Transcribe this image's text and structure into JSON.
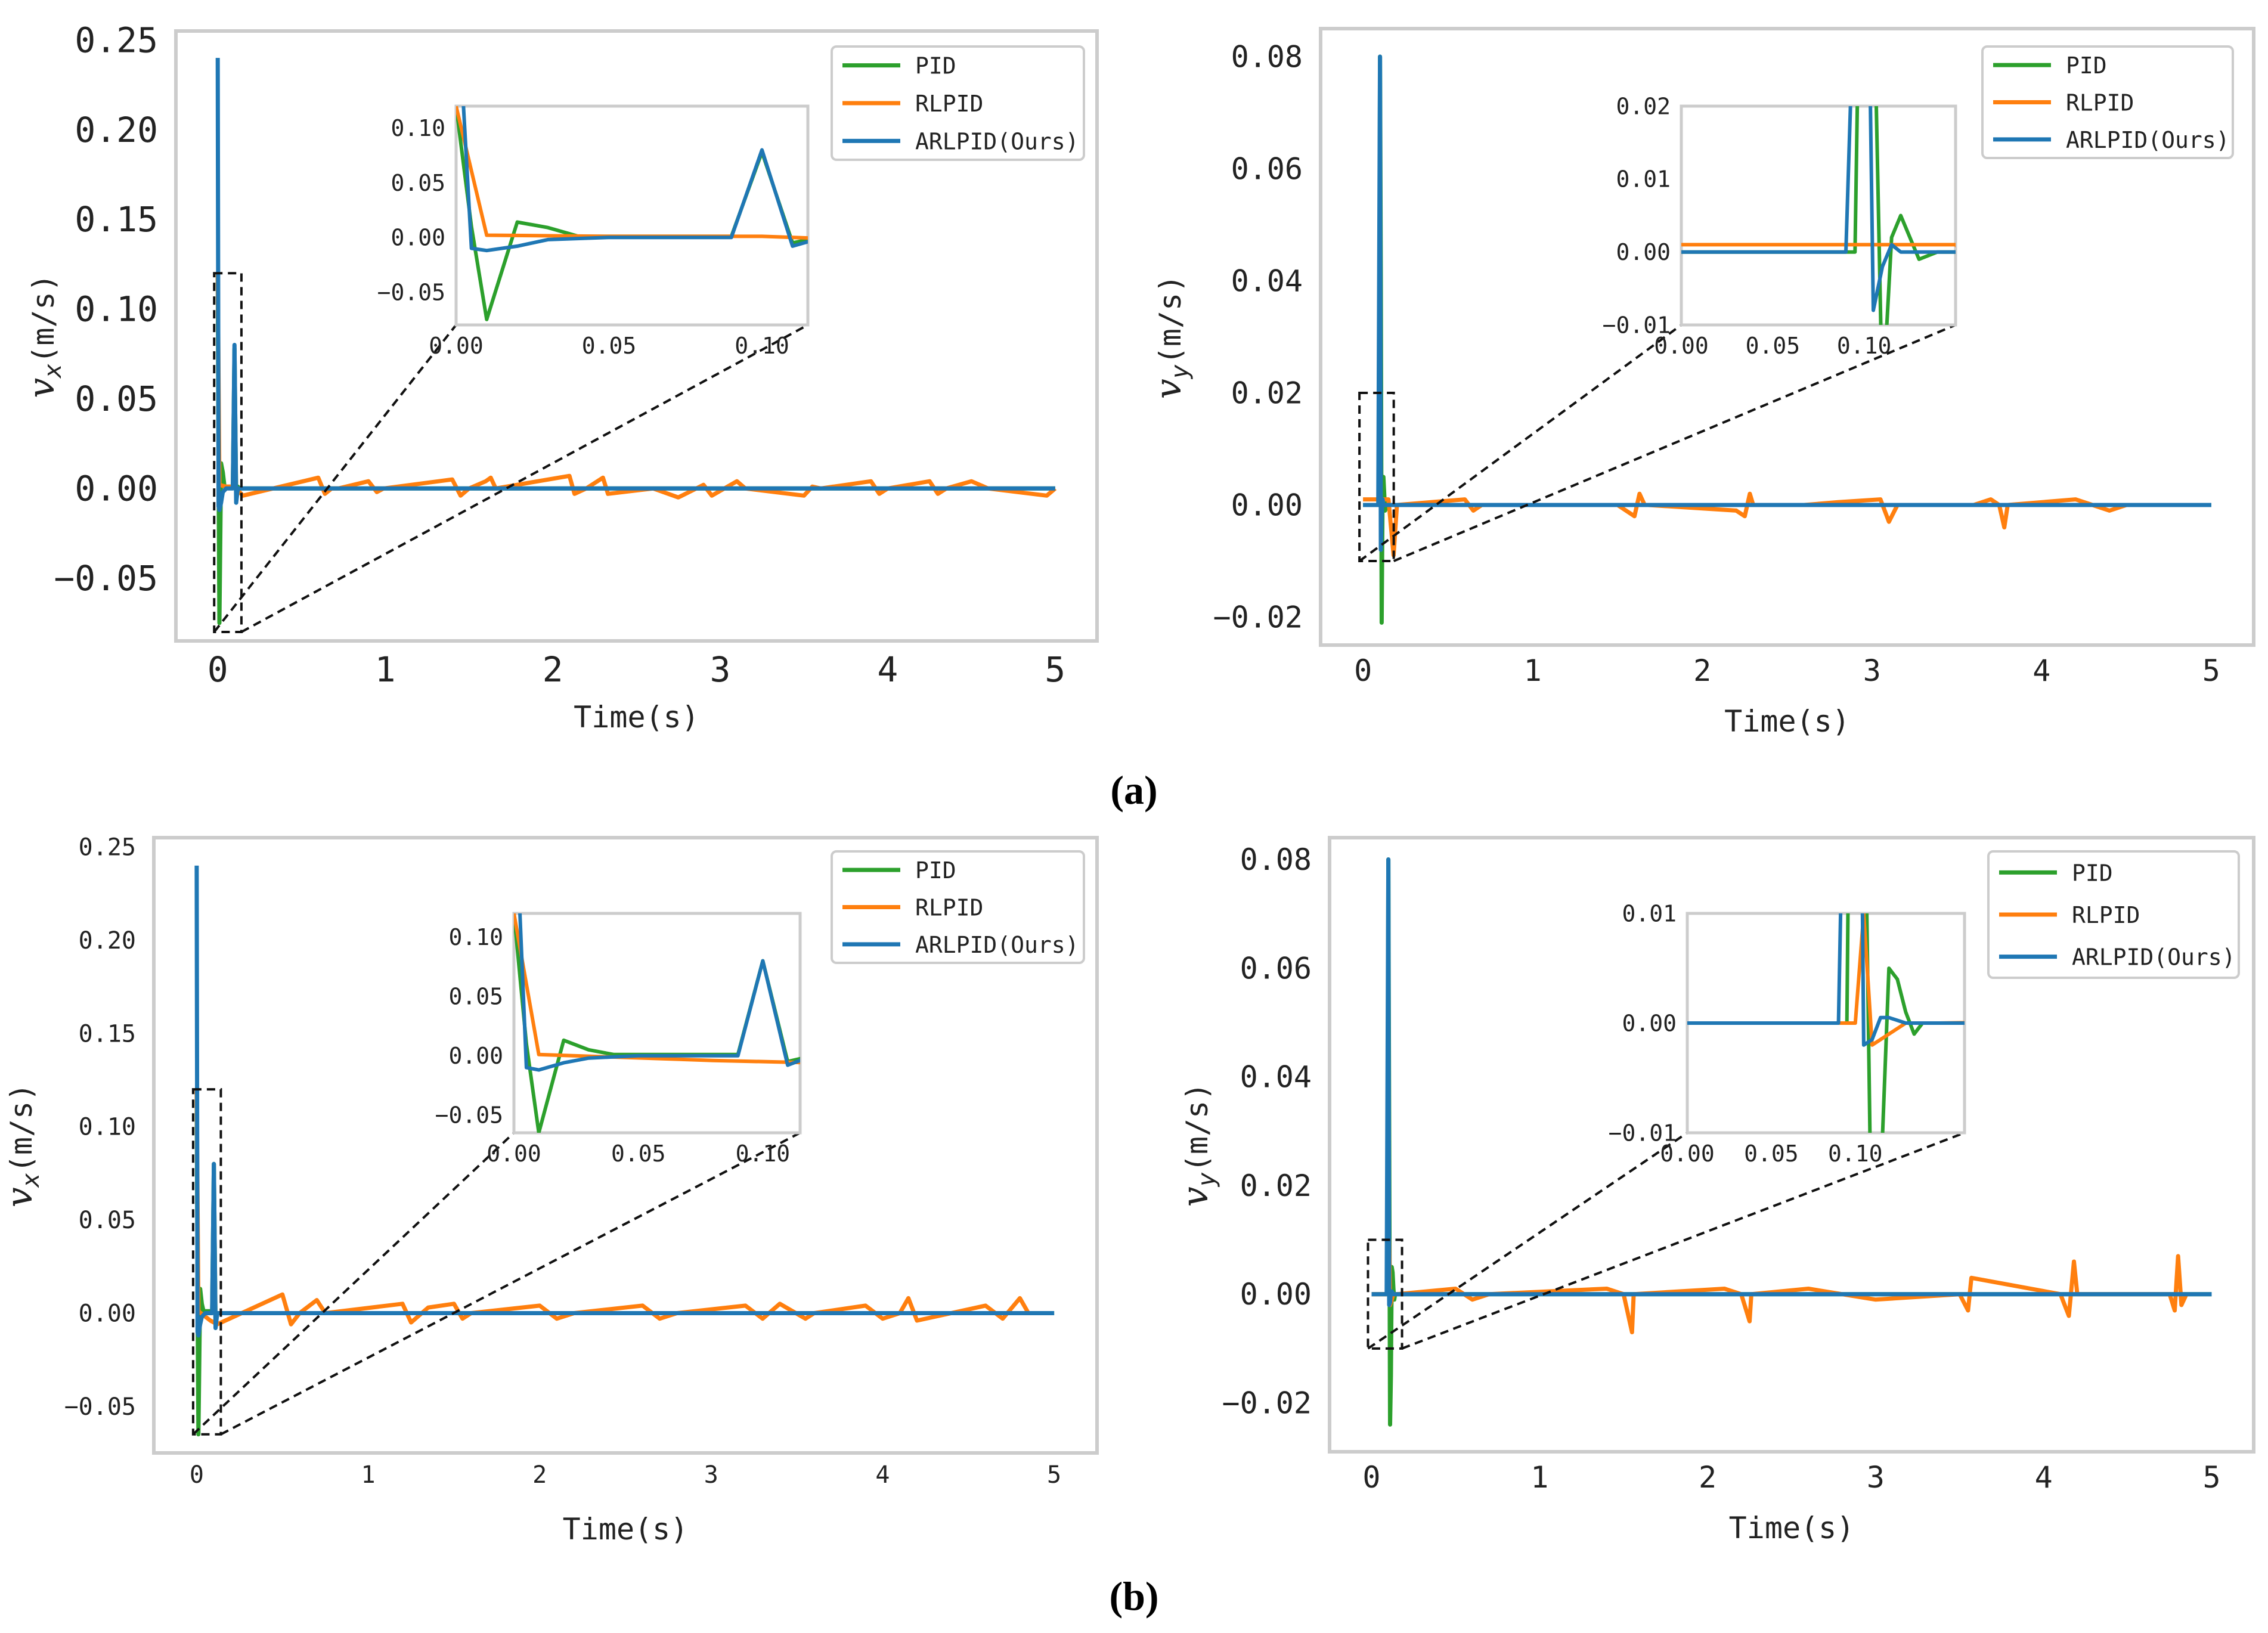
{
  "figure_labels": [
    "(a)",
    "(b)"
  ],
  "colors": {
    "PID": "#2ca02c",
    "RLPID": "#ff7f0e",
    "ARLPID": "#1f77b4",
    "frame": "#cccccc"
  },
  "chart_data": [
    {
      "id": "a-left",
      "type": "line",
      "panel": "(a)",
      "xlabel": "Time(s)",
      "ylabel_main": "v",
      "ylabel_sub": "x",
      "ylabel_unit": "(m/s)",
      "xlim": [
        -0.25,
        5.25
      ],
      "ylim": [
        -0.085,
        0.255
      ],
      "xticks": [
        0,
        1,
        2,
        3,
        4,
        5
      ],
      "xtick_labels": [
        "0",
        "1",
        "2",
        "3",
        "4",
        "5"
      ],
      "yticks": [
        -0.05,
        0,
        0.05,
        0.1,
        0.15,
        0.2,
        0.25
      ],
      "ytick_labels": [
        "−0.05",
        "0.00",
        "0.05",
        "0.10",
        "0.15",
        "0.20",
        "0.25"
      ],
      "legend": [
        "PID",
        "RLPID",
        "ARLPID(Ours)"
      ],
      "series": [
        {
          "name": "PID",
          "color": "#2ca02c",
          "x": [
            0,
            0.005,
            0.01,
            0.02,
            0.03,
            0.04,
            0.09,
            0.1,
            0.11,
            0.12,
            0.13,
            5
          ],
          "y": [
            0.12,
            0.01,
            -0.075,
            0.014,
            0.009,
            0.001,
            0.001,
            0.078,
            -0.005,
            0.001,
            0,
            0
          ]
        },
        {
          "name": "RLPID",
          "color": "#ff7f0e",
          "x": [
            0,
            0.01,
            0.05,
            0.1,
            0.15,
            0.6,
            0.64,
            0.68,
            0.72,
            0.9,
            0.95,
            0.99,
            1.4,
            1.45,
            1.5,
            1.6,
            1.63,
            1.66,
            2.1,
            2.13,
            2.2,
            2.3,
            2.33,
            2.6,
            2.75,
            2.9,
            2.95,
            3.1,
            3.15,
            3.5,
            3.55,
            3.6,
            3.9,
            3.95,
            4.0,
            4.25,
            4.3,
            4.35,
            4.5,
            4.6,
            4.95,
            5.0
          ],
          "y": [
            0.12,
            0.002,
            0.001,
            0.001,
            -0.004,
            0.006,
            -0.003,
            0,
            0,
            0.004,
            -0.002,
            0,
            0.005,
            -0.004,
            0,
            0.004,
            0.006,
            0,
            0.007,
            -0.003,
            0,
            0.006,
            -0.003,
            0,
            -0.005,
            0.002,
            -0.004,
            0.004,
            0,
            -0.004,
            0.001,
            0,
            0.004,
            -0.003,
            0,
            0.004,
            -0.003,
            0,
            0.004,
            0,
            -0.004,
            0
          ]
        },
        {
          "name": "ARLPID(Ours)",
          "color": "#1f77b4",
          "x": [
            0,
            0.005,
            0.01,
            0.02,
            0.03,
            0.05,
            0.09,
            0.1,
            0.11,
            0.12,
            5
          ],
          "y": [
            0.24,
            -0.01,
            -0.012,
            -0.008,
            -0.002,
            0,
            0,
            0.08,
            -0.008,
            0,
            0
          ]
        }
      ],
      "zoom_rect": {
        "x": [
          0,
          0.12
        ],
        "y": [
          -0.08,
          0.12
        ]
      },
      "inset": {
        "xlim": [
          0,
          0.115
        ],
        "ylim": [
          -0.08,
          0.12
        ],
        "xticks": [
          0,
          0.05,
          0.1
        ],
        "xtick_labels": [
          "0.00",
          "0.05",
          "0.10"
        ],
        "yticks": [
          -0.05,
          0,
          0.05,
          0.1
        ],
        "ytick_labels": [
          "−0.05",
          "0.00",
          "0.05",
          "0.10"
        ]
      }
    },
    {
      "id": "a-right",
      "type": "line",
      "panel": "(a)",
      "xlabel": "Time(s)",
      "ylabel_main": "v",
      "ylabel_sub": "y",
      "ylabel_unit": "(m/s)",
      "xlim": [
        -0.25,
        5.25
      ],
      "ylim": [
        -0.025,
        0.085
      ],
      "xticks": [
        0,
        1,
        2,
        3,
        4,
        5
      ],
      "xtick_labels": [
        "0",
        "1",
        "2",
        "3",
        "4",
        "5"
      ],
      "yticks": [
        -0.02,
        0,
        0.02,
        0.04,
        0.06,
        0.08
      ],
      "ytick_labels": [
        "−0.02",
        "0.00",
        "0.02",
        "0.04",
        "0.06",
        "0.08"
      ],
      "legend": [
        "PID",
        "RLPID",
        "ARLPID(Ours)"
      ],
      "series": [
        {
          "name": "PID",
          "color": "#2ca02c",
          "x": [
            0,
            0.095,
            0.1,
            0.105,
            0.11,
            0.115,
            0.12,
            0.13,
            0.14,
            5
          ],
          "y": [
            0,
            0,
            0.08,
            0.04,
            -0.021,
            0.002,
            0.005,
            -0.001,
            0,
            0
          ]
        },
        {
          "name": "RLPID",
          "color": "#ff7f0e",
          "x": [
            0,
            0.05,
            0.1,
            0.15,
            0.18,
            0.2,
            0.6,
            0.65,
            0.7,
            1.5,
            1.6,
            1.63,
            1.66,
            1.68,
            2.2,
            2.25,
            2.28,
            2.3,
            2.6,
            2.8,
            3.05,
            3.1,
            3.15,
            3.6,
            3.7,
            3.75,
            3.78,
            3.8,
            4.2,
            4.3,
            4.4,
            4.5
          ],
          "y": [
            0.001,
            0.001,
            0.001,
            0.001,
            -0.009,
            0,
            0.001,
            -0.001,
            0,
            0,
            -0.002,
            0.002,
            0,
            0,
            -0.001,
            -0.002,
            0.002,
            0,
            0,
            0.0005,
            0.001,
            -0.003,
            0,
            0,
            0.001,
            0,
            -0.004,
            0,
            0.001,
            0,
            -0.001,
            0
          ]
        },
        {
          "name": "ARLPID(Ours)",
          "color": "#1f77b4",
          "x": [
            0,
            0.09,
            0.1,
            0.105,
            0.11,
            0.115,
            0.12,
            5
          ],
          "y": [
            0,
            0,
            0.08,
            -0.008,
            -0.002,
            0.001,
            0,
            0
          ]
        }
      ],
      "zoom_rect": {
        "x": [
          0,
          0.16
        ],
        "y": [
          -0.01,
          0.02
        ]
      },
      "inset": {
        "xlim": [
          0,
          0.15
        ],
        "ylim": [
          -0.01,
          0.02
        ],
        "xticks": [
          0,
          0.05,
          0.1
        ],
        "xtick_labels": [
          "0.00",
          "0.05",
          "0.10"
        ],
        "yticks": [
          -0.01,
          0,
          0.01,
          0.02
        ],
        "ytick_labels": [
          "−0.01",
          "0.00",
          "0.01",
          "0.02"
        ]
      }
    },
    {
      "id": "b-left",
      "type": "line",
      "panel": "(b)",
      "xlabel": "Time(s)",
      "ylabel_main": "v",
      "ylabel_sub": "x",
      "ylabel_unit": "(m/s)",
      "xlim": [
        -0.25,
        5.25
      ],
      "ylim": [
        -0.075,
        0.255
      ],
      "xticks": [
        0,
        1,
        2,
        3,
        4,
        5
      ],
      "xtick_labels": [
        "0",
        "1",
        "2",
        "3",
        "4",
        "5"
      ],
      "yticks": [
        -0.05,
        0,
        0.05,
        0.1,
        0.15,
        0.2,
        0.25
      ],
      "ytick_labels": [
        "−0.05",
        "0.00",
        "0.05",
        "0.10",
        "0.15",
        "0.20",
        "0.25"
      ],
      "legend": [
        "PID",
        "RLPID",
        "ARLPID(Ours)"
      ],
      "series": [
        {
          "name": "PID",
          "color": "#2ca02c",
          "x": [
            0,
            0.005,
            0.01,
            0.02,
            0.03,
            0.04,
            0.09,
            0.1,
            0.11,
            0.12,
            5
          ],
          "y": [
            0.12,
            0.01,
            -0.065,
            0.013,
            0.005,
            0.001,
            0.001,
            0.08,
            -0.005,
            0,
            0
          ]
        },
        {
          "name": "RLPID",
          "color": "#ff7f0e",
          "x": [
            0,
            0.01,
            0.08,
            0.12,
            0.5,
            0.55,
            0.6,
            0.7,
            0.75,
            1.2,
            1.25,
            1.35,
            1.5,
            1.55,
            1.6,
            2.0,
            2.1,
            2.2,
            2.6,
            2.7,
            2.8,
            3.2,
            3.3,
            3.4,
            3.55,
            3.6,
            3.9,
            4.0,
            4.1,
            4.15,
            4.2,
            4.6,
            4.7,
            4.8,
            4.85
          ],
          "y": [
            0.12,
            0.001,
            -0.004,
            -0.006,
            0.01,
            -0.006,
            0,
            0.007,
            0,
            0.005,
            -0.005,
            0.003,
            0.005,
            -0.003,
            0,
            0.004,
            -0.003,
            0,
            0.004,
            -0.003,
            0,
            0.004,
            -0.003,
            0.005,
            -0.003,
            0,
            0.004,
            -0.003,
            0,
            0.008,
            -0.004,
            0.004,
            -0.003,
            0.008,
            0
          ]
        },
        {
          "name": "ARLPID(Ours)",
          "color": "#1f77b4",
          "x": [
            0,
            0.005,
            0.01,
            0.02,
            0.03,
            0.05,
            0.09,
            0.1,
            0.11,
            0.12,
            5
          ],
          "y": [
            0.24,
            -0.01,
            -0.012,
            -0.006,
            -0.002,
            0,
            0,
            0.08,
            -0.008,
            0,
            0
          ]
        }
      ],
      "zoom_rect": {
        "x": [
          0,
          0.12
        ],
        "y": [
          -0.065,
          0.12
        ]
      },
      "inset": {
        "xlim": [
          0,
          0.115
        ],
        "ylim": [
          -0.065,
          0.12
        ],
        "xticks": [
          0,
          0.05,
          0.1
        ],
        "xtick_labels": [
          "0.00",
          "0.05",
          "0.10"
        ],
        "yticks": [
          -0.05,
          0,
          0.05,
          0.1
        ],
        "ytick_labels": [
          "−0.05",
          "0.00",
          "0.05",
          "0.10"
        ]
      }
    },
    {
      "id": "b-right",
      "type": "line",
      "panel": "(b)",
      "xlabel": "Time(s)",
      "ylabel_main": "v",
      "ylabel_sub": "y",
      "ylabel_unit": "(m/s)",
      "xlim": [
        -0.25,
        5.25
      ],
      "ylim": [
        -0.029,
        0.084
      ],
      "xticks": [
        0,
        1,
        2,
        3,
        4,
        5
      ],
      "xtick_labels": [
        "0",
        "1",
        "2",
        "3",
        "4",
        "5"
      ],
      "yticks": [
        -0.02,
        0,
        0.02,
        0.04,
        0.06,
        0.08
      ],
      "ytick_labels": [
        "−0.02",
        "0.00",
        "0.02",
        "0.04",
        "0.06",
        "0.08"
      ],
      "legend": [
        "PID",
        "RLPID",
        "ARLPID(Ours)"
      ],
      "series": [
        {
          "name": "PID",
          "color": "#2ca02c",
          "x": [
            0,
            0.095,
            0.1,
            0.105,
            0.11,
            0.115,
            0.12,
            0.125,
            0.13,
            0.135,
            0.14,
            0.15,
            5
          ],
          "y": [
            0,
            0,
            0.08,
            0.03,
            -0.024,
            -0.015,
            0.005,
            0.004,
            0.001,
            -0.001,
            0,
            0,
            0
          ]
        },
        {
          "name": "RLPID",
          "color": "#ff7f0e",
          "x": [
            0,
            0.1,
            0.105,
            0.11,
            0.12,
            0.13,
            0.15,
            0.5,
            0.6,
            0.7,
            1.4,
            1.5,
            1.55,
            1.56,
            2.1,
            2.2,
            2.25,
            2.26,
            2.6,
            2.8,
            3.0,
            3.5,
            3.55,
            3.57,
            4.1,
            4.15,
            4.18,
            4.2,
            4.75,
            4.78,
            4.8,
            4.82,
            4.85
          ],
          "y": [
            0,
            0,
            0.01,
            -0.002,
            -0.001,
            0,
            0,
            0.001,
            -0.001,
            0,
            0.001,
            0,
            -0.007,
            0,
            0.001,
            0,
            -0.005,
            0,
            0.001,
            0,
            -0.001,
            0,
            -0.003,
            0.003,
            0,
            -0.004,
            0.006,
            0,
            0,
            -0.003,
            0.007,
            -0.002,
            0
          ]
        },
        {
          "name": "ARLPID(Ours)",
          "color": "#1f77b4",
          "x": [
            0,
            0.09,
            0.1,
            0.105,
            0.11,
            0.115,
            0.12,
            0.13,
            5
          ],
          "y": [
            0,
            0,
            0.08,
            -0.002,
            -0.0015,
            0.0005,
            0.0005,
            0,
            0
          ]
        }
      ],
      "zoom_rect": {
        "x": [
          0,
          0.16
        ],
        "y": [
          -0.01,
          0.01
        ]
      },
      "inset": {
        "xlim": [
          0,
          0.165
        ],
        "ylim": [
          -0.01,
          0.01
        ],
        "xticks": [
          0,
          0.05,
          0.1
        ],
        "xtick_labels": [
          "0.00",
          "0.05",
          "0.10"
        ],
        "yticks": [
          -0.01,
          0,
          0.01
        ],
        "ytick_labels": [
          "−0.01",
          "0.00",
          "0.01"
        ]
      }
    }
  ]
}
